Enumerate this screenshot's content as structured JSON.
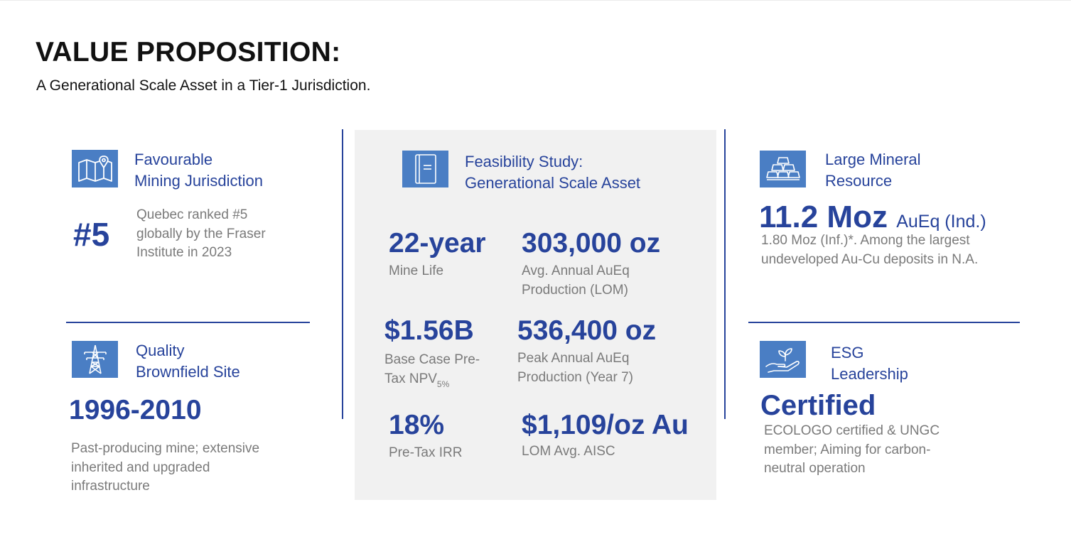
{
  "header": {
    "title": "VALUE PROPOSITION:",
    "subtitle": "A Generational Scale Asset in a Tier-1 Jurisdiction."
  },
  "jurisdiction": {
    "heading": [
      "Favourable",
      "Mining Jurisdiction"
    ],
    "value": "#5",
    "desc": [
      "Quebec ranked #5",
      "globally by the Fraser",
      "Institute in 2023"
    ],
    "icon": "map-pin-icon"
  },
  "brownfield": {
    "heading": [
      "Quality",
      "Brownfield Site"
    ],
    "value": "1996-2010",
    "desc": [
      "Past-producing mine; extensive",
      "inherited and upgraded",
      "infrastructure"
    ],
    "icon": "power-tower-icon"
  },
  "feasibility": {
    "heading": [
      "Feasibility Study:",
      "Generational Scale Asset"
    ],
    "icon": "document-icon",
    "metrics": {
      "mine_life": {
        "value": "22-year",
        "label": [
          "Mine Life"
        ]
      },
      "annual_production": {
        "value": "303,000 oz",
        "label": [
          "Avg. Annual AuEq",
          "Production (LOM)"
        ]
      },
      "npv": {
        "value": "$1.56B",
        "label_line1": "Base Case Pre-",
        "label_line2": "Tax NPV",
        "label_sub": "5%"
      },
      "peak_production": {
        "value": "536,400 oz",
        "label": [
          "Peak Annual AuEq",
          "Production (Year 7)"
        ]
      },
      "irr": {
        "value": "18%",
        "label": [
          "Pre-Tax IRR"
        ]
      },
      "aisc": {
        "value": "$1,109/oz Au",
        "label": [
          "LOM Avg. AISC"
        ]
      }
    }
  },
  "resource": {
    "heading": [
      "Large Mineral",
      "Resource"
    ],
    "value": "11.2 Moz",
    "value_suffix": "AuEq (Ind.)",
    "desc": [
      "1.80 Moz (Inf.)*. Among the largest",
      "undeveloped Au-Cu deposits in N.A."
    ],
    "icon": "gold-bars-icon"
  },
  "esg": {
    "heading": [
      "ESG",
      "Leadership"
    ],
    "value": "Certified",
    "desc": [
      "ECOLOGO certified & UNGC",
      "member; Aiming for carbon-",
      "neutral operation"
    ],
    "icon": "plant-hand-icon"
  },
  "colors": {
    "accent_blue": "#27439b",
    "icon_blue": "#4a7ec4",
    "panel_grey": "#f1f1f1",
    "text_grey": "#7a7a7a"
  }
}
